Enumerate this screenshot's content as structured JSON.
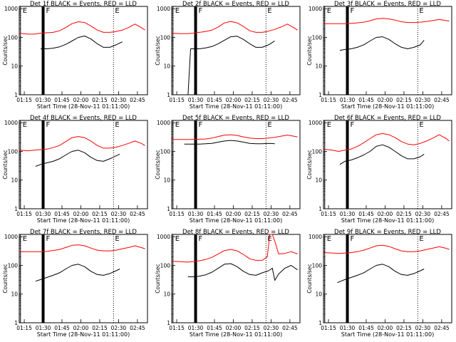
{
  "figure": {
    "x_ticks": [
      "01:15",
      "01:30",
      "01:45",
      "02:00",
      "02:15",
      "02:30",
      "02:45"
    ],
    "y_ticks": [
      "1",
      "10",
      "100",
      "1000"
    ],
    "xlabel": "Start Time (28-Nov-11 01:11:00)",
    "ylabel": "Counts/sec",
    "marker_start": "E",
    "marker_middle": "F",
    "marker_end": "E",
    "colors": {
      "events": "#000000",
      "lld": "#ff0000"
    }
  },
  "chart_data": [
    {
      "type": "line",
      "title": "Det 1f BLACK = Events, RED = LLD",
      "xlim": [
        "01:11",
        "02:53"
      ],
      "ylim": [
        1,
        1200
      ],
      "yscale": "log",
      "markers": [
        "01:12",
        "01:30",
        "02:26"
      ],
      "series": [
        {
          "name": "Events",
          "color": "#000000",
          "x": [
            "01:28",
            "01:33",
            "01:38",
            "01:43",
            "01:48",
            "01:53",
            "01:58",
            "02:03",
            "02:08",
            "02:13",
            "02:18",
            "02:23",
            "02:28",
            "02:33"
          ],
          "values": [
            40,
            40,
            42,
            47,
            57,
            75,
            100,
            112,
            88,
            60,
            45,
            45,
            55,
            70
          ]
        },
        {
          "name": "LLD",
          "color": "#ff0000",
          "x": [
            "01:11",
            "01:18",
            "01:23",
            "01:28",
            "01:33",
            "01:38",
            "01:43",
            "01:48",
            "01:53",
            "01:58",
            "02:03",
            "02:08",
            "02:13",
            "02:18",
            "02:23",
            "02:28",
            "02:33",
            "02:38",
            "02:43",
            "02:48",
            "02:51"
          ],
          "values": [
            140,
            130,
            130,
            140,
            145,
            150,
            170,
            220,
            300,
            350,
            330,
            250,
            180,
            150,
            150,
            160,
            180,
            220,
            290,
            220,
            180
          ]
        }
      ]
    },
    {
      "type": "line",
      "title": "Det 2f BLACK = Events, RED = LLD",
      "xlim": [
        "01:11",
        "02:53"
      ],
      "ylim": [
        1,
        1200
      ],
      "yscale": "log",
      "markers": [
        "01:12",
        "01:30",
        "02:26"
      ],
      "series": [
        {
          "name": "Events",
          "color": "#000000",
          "x": [
            "01:24",
            "01:26",
            "01:28",
            "01:33",
            "01:38",
            "01:43",
            "01:48",
            "01:53",
            "01:58",
            "02:03",
            "02:08",
            "02:13",
            "02:18",
            "02:23",
            "02:28",
            "02:33"
          ],
          "values": [
            1,
            40,
            40,
            40,
            43,
            48,
            60,
            80,
            105,
            110,
            85,
            60,
            45,
            45,
            55,
            75
          ]
        },
        {
          "name": "LLD",
          "color": "#ff0000",
          "x": [
            "01:11",
            "01:18",
            "01:23",
            "01:28",
            "01:33",
            "01:38",
            "01:43",
            "01:48",
            "01:53",
            "01:58",
            "02:03",
            "02:08",
            "02:13",
            "02:18",
            "02:23",
            "02:28",
            "02:33",
            "02:38",
            "02:43",
            "02:48",
            "02:51"
          ],
          "values": [
            140,
            135,
            135,
            140,
            150,
            160,
            180,
            230,
            320,
            360,
            320,
            240,
            170,
            150,
            150,
            165,
            190,
            230,
            290,
            220,
            180
          ]
        }
      ]
    },
    {
      "type": "line",
      "title": "Det 3f BLACK = Events, RED = LLD",
      "xlim": [
        "01:11",
        "02:53"
      ],
      "ylim": [
        1,
        1200
      ],
      "yscale": "log",
      "markers": [
        "01:12",
        "01:30",
        "02:26"
      ],
      "series": [
        {
          "name": "Events",
          "color": "#000000",
          "x": [
            "01:24",
            "01:28",
            "01:33",
            "01:38",
            "01:43",
            "01:48",
            "01:53",
            "01:58",
            "02:03",
            "02:08",
            "02:13",
            "02:18",
            "02:23",
            "02:28",
            "02:31"
          ],
          "values": [
            35,
            38,
            40,
            45,
            55,
            75,
            100,
            105,
            85,
            60,
            45,
            40,
            45,
            55,
            80
          ]
        },
        {
          "name": "LLD",
          "color": "#ff0000",
          "x": [
            "01:11",
            "01:18",
            "01:23",
            "01:28",
            "01:33",
            "01:38",
            "01:43",
            "01:48",
            "01:53",
            "01:58",
            "02:03",
            "02:08",
            "02:13",
            "02:18",
            "02:23",
            "02:28",
            "02:33",
            "02:38",
            "02:43",
            "02:48",
            "02:51"
          ],
          "values": [
            300,
            300,
            300,
            300,
            310,
            320,
            340,
            380,
            440,
            460,
            440,
            400,
            350,
            330,
            330,
            340,
            360,
            390,
            420,
            390,
            370
          ]
        }
      ]
    },
    {
      "type": "line",
      "title": "Det 4f BLACK = Events, RED = LLD",
      "xlim": [
        "01:11",
        "02:53"
      ],
      "ylim": [
        1,
        1200
      ],
      "yscale": "log",
      "markers": [
        "01:12",
        "01:30",
        "02:26"
      ],
      "series": [
        {
          "name": "Events",
          "color": "#000000",
          "x": [
            "01:24",
            "01:28",
            "01:33",
            "01:38",
            "01:43",
            "01:48",
            "01:53",
            "01:58",
            "02:03",
            "02:08",
            "02:13",
            "02:18",
            "02:23",
            "02:28",
            "02:31"
          ],
          "values": [
            30,
            35,
            40,
            45,
            55,
            75,
            100,
            110,
            90,
            62,
            48,
            45,
            55,
            70,
            80
          ]
        },
        {
          "name": "LLD",
          "color": "#ff0000",
          "x": [
            "01:11",
            "01:18",
            "01:23",
            "01:28",
            "01:33",
            "01:38",
            "01:43",
            "01:48",
            "01:53",
            "01:58",
            "02:03",
            "02:08",
            "02:13",
            "02:18",
            "02:23",
            "02:28",
            "02:33",
            "02:38",
            "02:43",
            "02:48",
            "02:51"
          ],
          "values": [
            110,
            105,
            110,
            115,
            120,
            135,
            160,
            220,
            300,
            330,
            300,
            230,
            160,
            130,
            130,
            140,
            160,
            190,
            230,
            190,
            160
          ]
        }
      ]
    },
    {
      "type": "line",
      "title": "Det 5f BLACK = Events, RED = LLD",
      "xlim": [
        "01:11",
        "02:53"
      ],
      "ylim": [
        1,
        1200
      ],
      "yscale": "log",
      "markers": [
        "01:12",
        "01:30",
        "02:26"
      ],
      "series": [
        {
          "name": "Events",
          "color": "#000000",
          "x": [
            "01:21",
            "01:28",
            "01:33",
            "01:38",
            "01:43",
            "01:48",
            "01:53",
            "01:58",
            "02:03",
            "02:08",
            "02:13",
            "02:18",
            "02:23",
            "02:28",
            "02:33"
          ],
          "values": [
            180,
            180,
            180,
            185,
            190,
            210,
            230,
            240,
            230,
            210,
            190,
            185,
            185,
            190,
            185
          ]
        },
        {
          "name": "LLD",
          "color": "#ff0000",
          "x": [
            "01:11",
            "01:18",
            "01:23",
            "01:28",
            "01:33",
            "01:38",
            "01:43",
            "01:48",
            "01:53",
            "01:58",
            "02:03",
            "02:08",
            "02:13",
            "02:18",
            "02:23",
            "02:28",
            "02:33",
            "02:38",
            "02:43",
            "02:48",
            "02:51"
          ],
          "values": [
            260,
            260,
            260,
            260,
            265,
            270,
            290,
            330,
            370,
            380,
            360,
            320,
            290,
            280,
            280,
            290,
            310,
            340,
            370,
            340,
            320
          ]
        }
      ]
    },
    {
      "type": "line",
      "title": "Det 6f BLACK = Events, RED = LLD",
      "xlim": [
        "01:11",
        "02:53"
      ],
      "ylim": [
        1,
        1200
      ],
      "yscale": "log",
      "markers": [
        "01:12",
        "01:30",
        "02:26"
      ],
      "series": [
        {
          "name": "Events",
          "color": "#000000",
          "x": [
            "01:24",
            "01:28",
            "01:33",
            "01:38",
            "01:43",
            "01:48",
            "01:53",
            "01:58",
            "02:03",
            "02:08",
            "02:13",
            "02:18",
            "02:23",
            "02:28",
            "02:31"
          ],
          "values": [
            35,
            45,
            50,
            60,
            75,
            100,
            150,
            170,
            140,
            100,
            70,
            55,
            55,
            65,
            80
          ]
        },
        {
          "name": "LLD",
          "color": "#ff0000",
          "x": [
            "01:11",
            "01:18",
            "01:23",
            "01:28",
            "01:33",
            "01:38",
            "01:43",
            "01:48",
            "01:53",
            "01:58",
            "02:03",
            "02:08",
            "02:13",
            "02:18",
            "02:23",
            "02:28",
            "02:33",
            "02:38",
            "02:43",
            "02:48",
            "02:51"
          ],
          "values": [
            120,
            110,
            100,
            110,
            120,
            150,
            200,
            280,
            380,
            420,
            380,
            300,
            220,
            180,
            170,
            190,
            230,
            290,
            380,
            290,
            230
          ]
        }
      ]
    },
    {
      "type": "line",
      "title": "Det 7f BLACK = Events, RED = LLD",
      "xlim": [
        "01:11",
        "02:53"
      ],
      "ylim": [
        1,
        1200
      ],
      "yscale": "log",
      "markers": [
        "01:12",
        "01:30",
        "02:26"
      ],
      "series": [
        {
          "name": "Events",
          "color": "#000000",
          "x": [
            "01:24",
            "01:28",
            "01:33",
            "01:38",
            "01:43",
            "01:48",
            "01:53",
            "01:58",
            "02:03",
            "02:08",
            "02:13",
            "02:18",
            "02:23",
            "02:28",
            "02:31"
          ],
          "values": [
            28,
            32,
            38,
            45,
            55,
            75,
            100,
            110,
            90,
            62,
            48,
            45,
            52,
            65,
            75
          ]
        },
        {
          "name": "LLD",
          "color": "#ff0000",
          "x": [
            "01:11",
            "01:18",
            "01:23",
            "01:28",
            "01:33",
            "01:38",
            "01:43",
            "01:48",
            "01:53",
            "01:58",
            "02:03",
            "02:08",
            "02:13",
            "02:18",
            "02:23",
            "02:28",
            "02:33",
            "02:38",
            "02:43",
            "02:48",
            "02:51"
          ],
          "values": [
            300,
            300,
            300,
            300,
            310,
            330,
            360,
            420,
            500,
            520,
            480,
            400,
            340,
            320,
            320,
            340,
            380,
            420,
            480,
            420,
            380
          ]
        }
      ]
    },
    {
      "type": "line",
      "title": "Det 8f BLACK = Events, RED = LLD",
      "xlim": [
        "01:11",
        "02:53"
      ],
      "ylim": [
        1,
        1200
      ],
      "yscale": "log",
      "markers": [
        "01:12",
        "01:30",
        "02:26"
      ],
      "series": [
        {
          "name": "Events",
          "color": "#000000",
          "x": [
            "01:24",
            "01:28",
            "01:33",
            "01:38",
            "01:43",
            "01:48",
            "01:53",
            "01:58",
            "02:03",
            "02:08",
            "02:13",
            "02:18",
            "02:23",
            "02:28",
            "02:31",
            "02:33",
            "02:36",
            "02:41",
            "02:46",
            "02:51"
          ],
          "values": [
            40,
            40,
            42,
            47,
            58,
            80,
            110,
            115,
            90,
            62,
            48,
            45,
            55,
            65,
            80,
            30,
            50,
            80,
            100,
            70
          ]
        },
        {
          "name": "LLD",
          "color": "#ff0000",
          "x": [
            "01:11",
            "01:18",
            "01:23",
            "01:28",
            "01:33",
            "01:38",
            "01:43",
            "01:48",
            "01:53",
            "01:58",
            "02:03",
            "02:08",
            "02:13",
            "02:18",
            "02:23",
            "02:27",
            "02:29",
            "02:31",
            "02:33",
            "02:36",
            "02:41",
            "02:46",
            "02:51"
          ],
          "values": [
            140,
            135,
            130,
            135,
            145,
            160,
            190,
            250,
            330,
            360,
            320,
            240,
            170,
            150,
            150,
            200,
            1200,
            1200,
            700,
            250,
            260,
            300,
            250
          ]
        }
      ]
    },
    {
      "type": "line",
      "title": "Det 9f BLACK = Events, RED = LLD",
      "xlim": [
        "01:11",
        "02:53"
      ],
      "ylim": [
        1,
        1200
      ],
      "yscale": "log",
      "markers": [
        "01:12",
        "01:30",
        "02:26"
      ],
      "series": [
        {
          "name": "Events",
          "color": "#000000",
          "x": [
            "01:22",
            "01:28",
            "01:33",
            "01:38",
            "01:43",
            "01:48",
            "01:53",
            "01:58",
            "02:03",
            "02:08",
            "02:13",
            "02:18",
            "02:23",
            "02:28",
            "02:31"
          ],
          "values": [
            25,
            32,
            38,
            45,
            55,
            75,
            100,
            110,
            90,
            62,
            48,
            45,
            52,
            65,
            75
          ]
        },
        {
          "name": "LLD",
          "color": "#ff0000",
          "x": [
            "01:11",
            "01:18",
            "01:23",
            "01:28",
            "01:33",
            "01:38",
            "01:43",
            "01:48",
            "01:53",
            "01:58",
            "02:03",
            "02:08",
            "02:13",
            "02:18",
            "02:23",
            "02:28",
            "02:33",
            "02:38",
            "02:43",
            "02:48",
            "02:51"
          ],
          "values": [
            280,
            270,
            260,
            270,
            280,
            300,
            340,
            400,
            480,
            500,
            460,
            380,
            320,
            300,
            300,
            320,
            360,
            400,
            450,
            400,
            360
          ]
        }
      ]
    }
  ]
}
